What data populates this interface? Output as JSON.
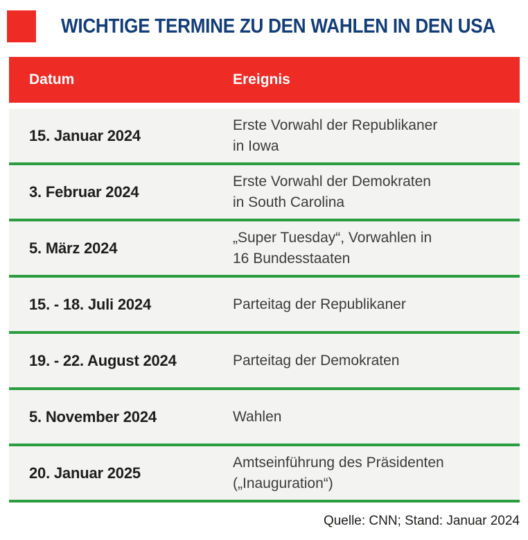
{
  "chart_data": {
    "type": "table",
    "title": "WICHTIGE TERMINE ZU DEN WAHLEN IN DEN USA",
    "columns": [
      "Datum",
      "Ereignis"
    ],
    "rows": [
      {
        "datum": "15. Januar 2024",
        "ereignis": "Erste Vorwahl der Republikaner\nin Iowa"
      },
      {
        "datum": "3. Februar 2024",
        "ereignis": "Erste Vorwahl der Demokraten\nin South Carolina"
      },
      {
        "datum": "5. März 2024",
        "ereignis": "„Super Tuesday“, Vorwahlen in\n16 Bundesstaaten"
      },
      {
        "datum": "15. - 18. Juli 2024",
        "ereignis": "Parteitag der Republikaner"
      },
      {
        "datum": "19. - 22. August 2024",
        "ereignis": "Parteitag der Demokraten"
      },
      {
        "datum": "5. November 2024",
        "ereignis": "Wahlen"
      },
      {
        "datum": "20. Januar 2025",
        "ereignis": "Amtseinführung des Präsidenten\n(„Inauguration“)"
      }
    ],
    "source": "Quelle: CNN; Stand: Januar 2024",
    "legend_position": "none",
    "grid": "green horizontal separators"
  },
  "colors": {
    "header_red": "#ee2b25",
    "title_navy": "#133d77",
    "separator_green": "#2a9d3e",
    "row_background": "#f3f3f1",
    "date_text": "#1d1d1b",
    "event_text": "#3b3b39"
  }
}
